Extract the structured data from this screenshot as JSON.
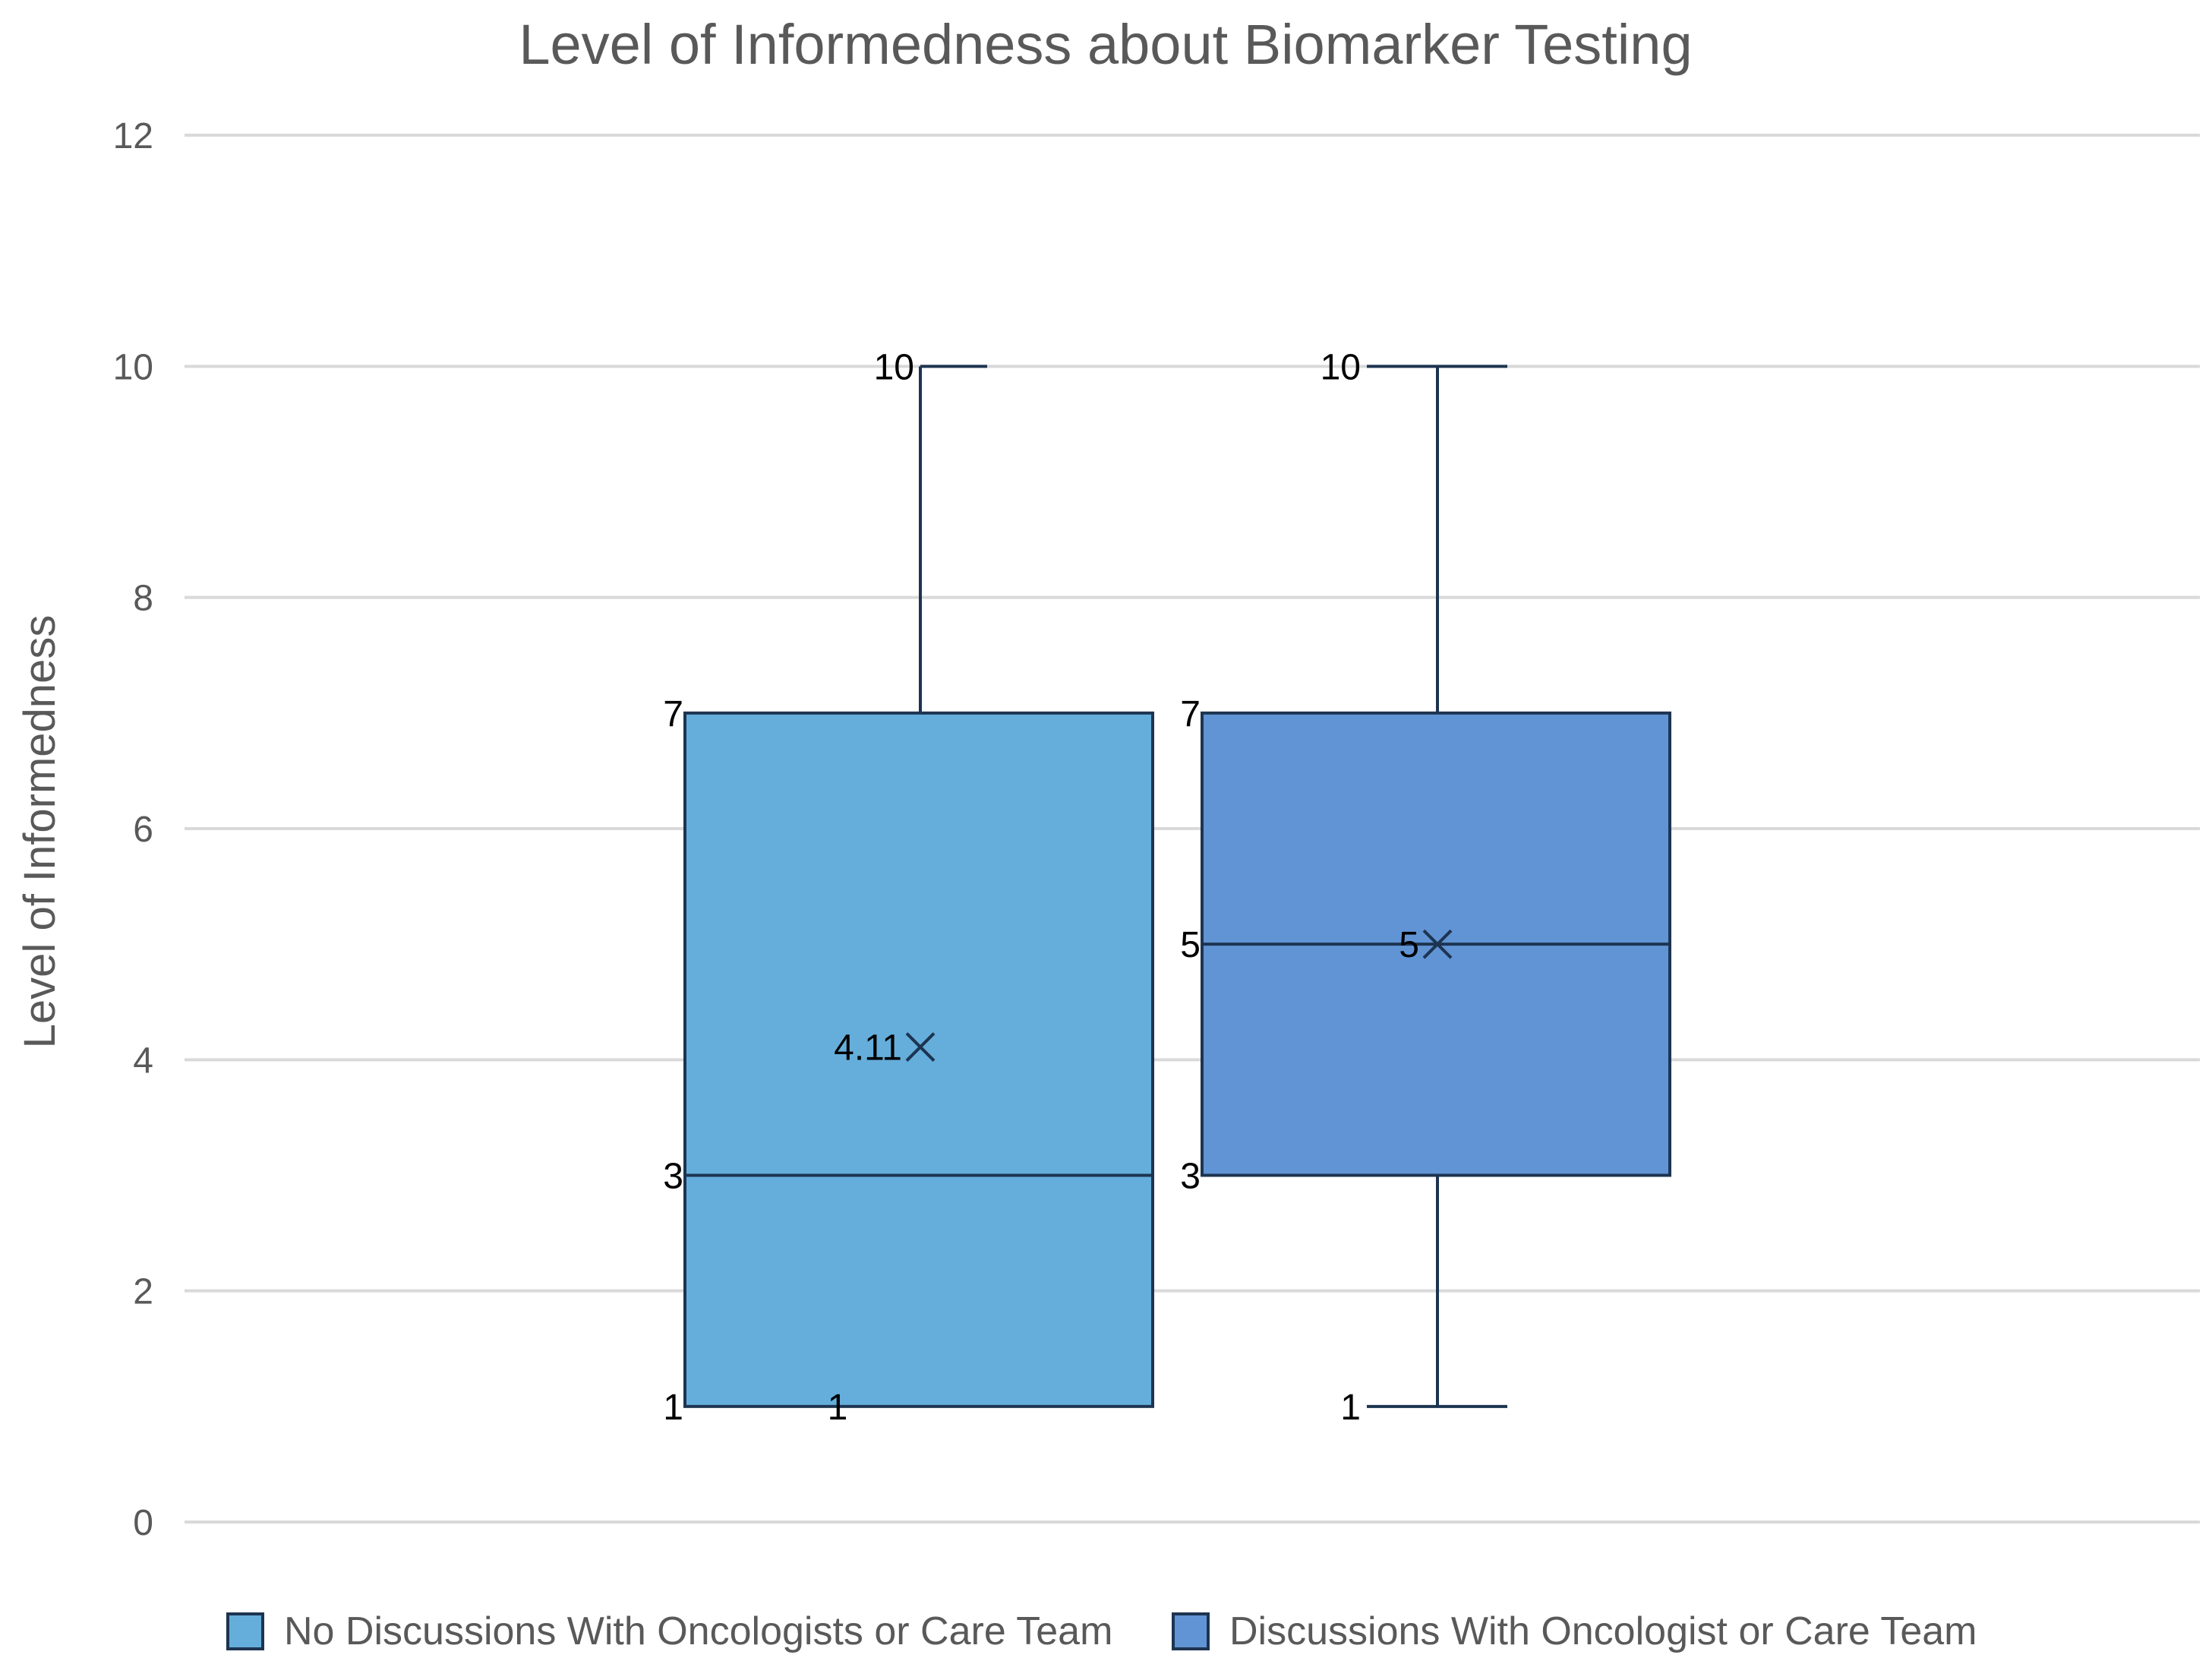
{
  "chart_data": {
    "type": "boxplot",
    "title": "Level of Informedness about Biomarker Testing",
    "ylabel": "Level of Informedness",
    "xlabel": "",
    "ylim": [
      0,
      12
    ],
    "yticks": [
      "0",
      "2",
      "4",
      "6",
      "8",
      "10",
      "12"
    ],
    "grid": true,
    "legend_position": "bottom",
    "series": [
      {
        "name": "No Discussions With Oncologists or Care Team",
        "color": "#65AEDB",
        "min": 1,
        "q1": 1,
        "median": 3,
        "q3": 7,
        "max": 10,
        "mean": 4.11,
        "labels": {
          "max": "10",
          "q3": "7",
          "median": "3",
          "q1": "1",
          "min": "1",
          "mean": "4.11"
        }
      },
      {
        "name": "Discussions With Oncologist or Care Team",
        "color": "#6194D5",
        "min": 1,
        "q1": 3,
        "median": 5,
        "q3": 7,
        "max": 10,
        "mean": 5,
        "labels": {
          "max": "10",
          "q3": "7",
          "median": "5",
          "q1": "3",
          "min": "1",
          "mean": "5"
        }
      }
    ]
  }
}
